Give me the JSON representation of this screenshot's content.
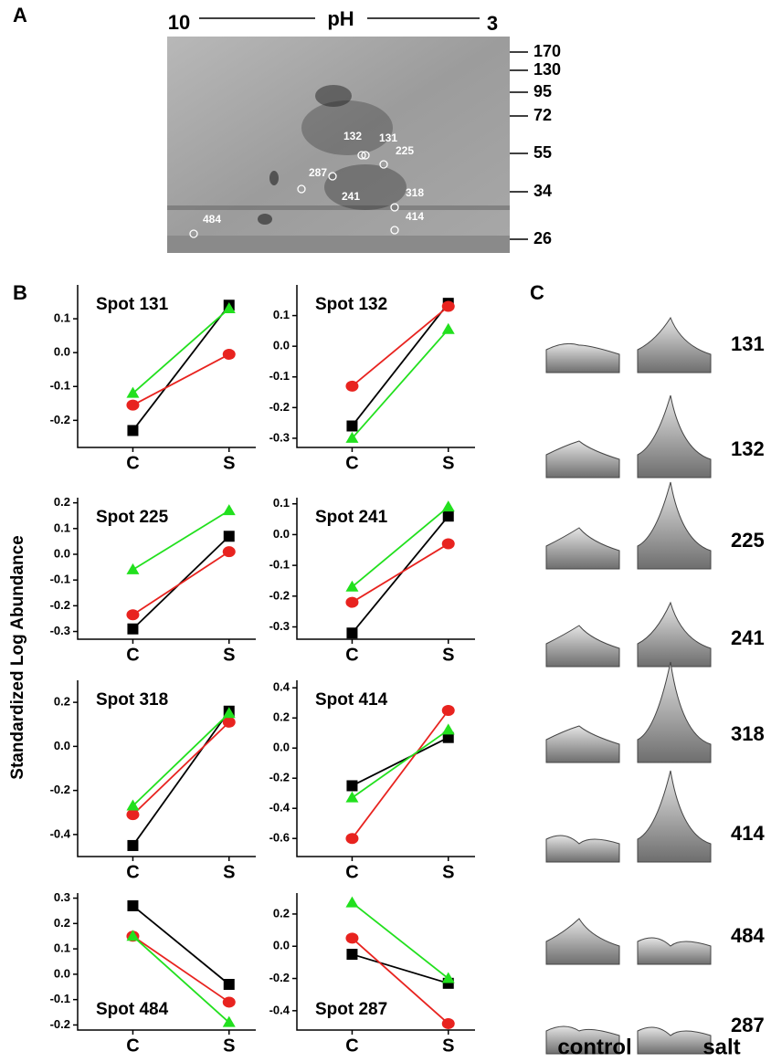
{
  "gel": {
    "panel_label": "A",
    "ph_left": "10",
    "ph_label": "pH",
    "ph_right": "3",
    "mw_markers": [
      "170",
      "130",
      "95",
      "72",
      "55",
      "34",
      "26"
    ],
    "spots": [
      "132",
      "131",
      "225",
      "287",
      "241",
      "318",
      "414",
      "484"
    ]
  },
  "panel_b": {
    "label": "B",
    "y_axis_label": "Standardized Log Abundance"
  },
  "panel_c": {
    "label": "C",
    "rows": [
      "131",
      "132",
      "225",
      "241",
      "318",
      "414",
      "484",
      "287"
    ],
    "columns": [
      "control",
      "salt"
    ]
  },
  "chart_data": [
    {
      "type": "line",
      "title": "Spot 131",
      "categories": [
        "C",
        "S"
      ],
      "ylim": [
        -0.28,
        0.2
      ],
      "yticks": [
        -0.2,
        -0.1,
        {
          "value": 0,
          "label": "0.0"
        },
        0.1
      ],
      "series": [
        {
          "color": "#000000",
          "marker": "square",
          "values": [
            -0.23,
            0.14
          ]
        },
        {
          "color": "#e8231f",
          "marker": "circle",
          "values": [
            -0.155,
            -0.005
          ]
        },
        {
          "color": "#22e01e",
          "marker": "triangle",
          "values": [
            -0.12,
            0.13
          ]
        }
      ]
    },
    {
      "type": "line",
      "title": "Spot 132",
      "categories": [
        "C",
        "S"
      ],
      "ylim": [
        -0.33,
        0.2
      ],
      "yticks": [
        -0.3,
        -0.2,
        -0.1,
        {
          "value": 0,
          "label": "0.0"
        },
        0.1
      ],
      "series": [
        {
          "color": "#000000",
          "marker": "square",
          "values": [
            -0.26,
            0.14
          ]
        },
        {
          "color": "#e8231f",
          "marker": "circle",
          "values": [
            -0.13,
            0.13
          ]
        },
        {
          "color": "#22e01e",
          "marker": "triangle",
          "values": [
            -0.3,
            0.055
          ]
        }
      ]
    },
    {
      "type": "line",
      "title": "Spot 225",
      "categories": [
        "C",
        "S"
      ],
      "ylim": [
        -0.33,
        0.22
      ],
      "yticks": [
        -0.3,
        -0.2,
        -0.1,
        {
          "value": 0,
          "label": "0.0"
        },
        0.1,
        0.2
      ],
      "series": [
        {
          "color": "#000000",
          "marker": "square",
          "values": [
            -0.29,
            0.07
          ]
        },
        {
          "color": "#e8231f",
          "marker": "circle",
          "values": [
            -0.235,
            0.01
          ]
        },
        {
          "color": "#22e01e",
          "marker": "triangle",
          "values": [
            -0.06,
            0.17
          ]
        }
      ]
    },
    {
      "type": "line",
      "title": "Spot 241",
      "categories": [
        "C",
        "S"
      ],
      "ylim": [
        -0.34,
        0.12
      ],
      "yticks": [
        -0.3,
        -0.2,
        -0.1,
        {
          "value": 0,
          "label": "0.0"
        },
        0.1
      ],
      "series": [
        {
          "color": "#000000",
          "marker": "square",
          "values": [
            -0.32,
            0.06
          ]
        },
        {
          "color": "#e8231f",
          "marker": "circle",
          "values": [
            -0.22,
            -0.03
          ]
        },
        {
          "color": "#22e01e",
          "marker": "triangle",
          "values": [
            -0.17,
            0.09
          ]
        }
      ]
    },
    {
      "type": "line",
      "title": "Spot 318",
      "categories": [
        "C",
        "S"
      ],
      "ylim": [
        -0.5,
        0.3
      ],
      "yticks": [
        -0.4,
        -0.2,
        {
          "value": 0,
          "label": "0.0"
        },
        0.2
      ],
      "series": [
        {
          "color": "#000000",
          "marker": "square",
          "values": [
            -0.45,
            0.16
          ]
        },
        {
          "color": "#e8231f",
          "marker": "circle",
          "values": [
            -0.31,
            0.11
          ]
        },
        {
          "color": "#22e01e",
          "marker": "triangle",
          "values": [
            -0.27,
            0.15
          ]
        }
      ]
    },
    {
      "type": "line",
      "title": "Spot 414",
      "categories": [
        "C",
        "S"
      ],
      "ylim": [
        -0.72,
        0.45
      ],
      "yticks": [
        -0.6,
        -0.4,
        -0.2,
        {
          "value": 0,
          "label": "0.0"
        },
        0.2,
        0.4
      ],
      "series": [
        {
          "color": "#000000",
          "marker": "square",
          "values": [
            -0.25,
            0.07
          ]
        },
        {
          "color": "#e8231f",
          "marker": "circle",
          "values": [
            -0.6,
            0.25
          ]
        },
        {
          "color": "#22e01e",
          "marker": "triangle",
          "values": [
            -0.33,
            0.12
          ]
        }
      ]
    },
    {
      "type": "line",
      "title": "Spot 484",
      "categories": [
        "C",
        "S"
      ],
      "ylim": [
        -0.22,
        0.32
      ],
      "yticks": [
        -0.2,
        -0.1,
        {
          "value": 0,
          "label": "0.0"
        },
        0.1,
        0.2,
        0.3
      ],
      "series": [
        {
          "color": "#000000",
          "marker": "square",
          "values": [
            0.27,
            -0.04
          ]
        },
        {
          "color": "#e8231f",
          "marker": "circle",
          "values": [
            0.15,
            -0.11
          ]
        },
        {
          "color": "#22e01e",
          "marker": "triangle",
          "values": [
            0.15,
            -0.19
          ]
        }
      ]
    },
    {
      "type": "line",
      "title": "Spot 287",
      "categories": [
        "C",
        "S"
      ],
      "ylim": [
        -0.52,
        0.33
      ],
      "yticks": [
        -0.4,
        -0.2,
        {
          "value": 0,
          "label": "0.0"
        },
        0.2
      ],
      "series": [
        {
          "color": "#000000",
          "marker": "square",
          "values": [
            -0.05,
            -0.23
          ]
        },
        {
          "color": "#e8231f",
          "marker": "circle",
          "values": [
            0.05,
            -0.48
          ]
        },
        {
          "color": "#22e01e",
          "marker": "triangle",
          "values": [
            0.27,
            -0.2
          ]
        }
      ]
    }
  ]
}
